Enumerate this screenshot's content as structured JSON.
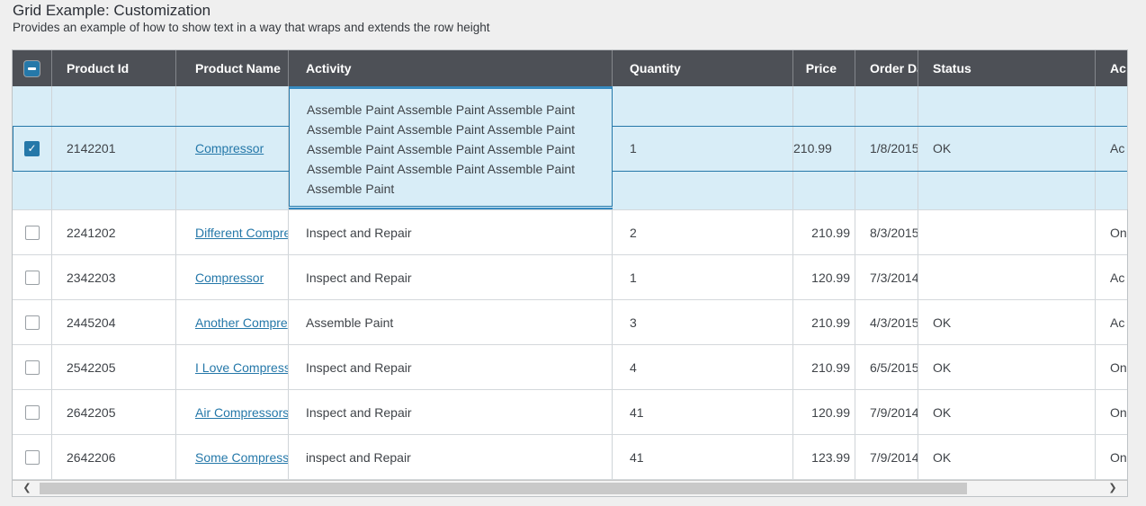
{
  "page": {
    "title": "Grid Example: Customization",
    "subtitle": "Provides an example of how to show text in a way that wraps and extends the row height"
  },
  "colors": {
    "accent_blue": "#2578a9",
    "accent_blue_bright": "#368ac0",
    "header_bg": "#4d5056",
    "selected_row_bg": "#d8edf7",
    "page_bg": "#efefef",
    "link": "#2578a9",
    "scroll_thumb": "#c9c9c9"
  },
  "grid": {
    "select_all_state": "indeterminate",
    "columns": [
      {
        "key": "checkbox",
        "label": ""
      },
      {
        "key": "productId",
        "label": "Product Id"
      },
      {
        "key": "productName",
        "label": "Product Name"
      },
      {
        "key": "activity",
        "label": "Activity"
      },
      {
        "key": "quantity",
        "label": "Quantity"
      },
      {
        "key": "price",
        "label": "Price"
      },
      {
        "key": "orderDate",
        "label": "Order Da"
      },
      {
        "key": "status",
        "label": "Status"
      },
      {
        "key": "action",
        "label": "Ac"
      }
    ],
    "rows": [
      {
        "selected": true,
        "checked": true,
        "productId": "2142201",
        "productName": "Compressor",
        "activity": "Assemble Paint Assemble Paint Assemble Paint Assemble Paint Assemble Paint Assemble Paint Assemble Paint Assemble Paint Assemble Paint Assemble Paint Assemble Paint Assemble Paint Assemble Paint",
        "quantity": "1",
        "price": "210.99",
        "orderDate": "1/8/2015",
        "status": "OK",
        "action": "Ac"
      },
      {
        "selected": false,
        "checked": false,
        "productId": "2241202",
        "productName": "Different Compre",
        "activity": "Inspect and Repair",
        "quantity": "2",
        "price": "210.99",
        "orderDate": "8/3/2015",
        "status": "",
        "action": "On"
      },
      {
        "selected": false,
        "checked": false,
        "productId": "2342203",
        "productName": "Compressor",
        "activity": "Inspect and Repair",
        "quantity": "1",
        "price": "120.99",
        "orderDate": "7/3/2014",
        "status": "",
        "action": "Ac"
      },
      {
        "selected": false,
        "checked": false,
        "productId": "2445204",
        "productName": "Another Compre",
        "activity": "Assemble Paint",
        "quantity": "3",
        "price": "210.99",
        "orderDate": "4/3/2015",
        "status": "OK",
        "action": "Ac"
      },
      {
        "selected": false,
        "checked": false,
        "productId": "2542205",
        "productName": "I Love Compress",
        "activity": "Inspect and Repair",
        "quantity": "4",
        "price": "210.99",
        "orderDate": "6/5/2015",
        "status": "OK",
        "action": "On"
      },
      {
        "selected": false,
        "checked": false,
        "productId": "2642205",
        "productName": "Air Compressors",
        "activity": "Inspect and Repair",
        "quantity": "41",
        "price": "120.99",
        "orderDate": "7/9/2014",
        "status": "OK",
        "action": "On"
      },
      {
        "selected": false,
        "checked": false,
        "productId": "2642206",
        "productName": "Some Compress",
        "activity": "inspect and Repair",
        "quantity": "41",
        "price": "123.99",
        "orderDate": "7/9/2014",
        "status": "OK",
        "action": "On"
      }
    ]
  },
  "scrollbar": {
    "left_arrow": "❮",
    "right_arrow": "❯"
  }
}
